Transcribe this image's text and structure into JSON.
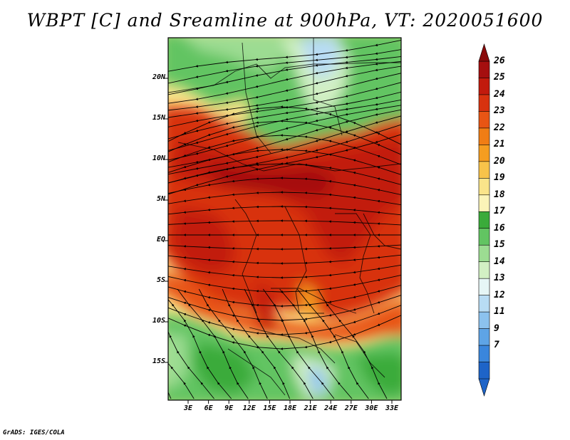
{
  "title": "WBPT [C] and Sreamline at 900hPa, VT: 2020051600",
  "credit": "GrADS: IGES/COLA",
  "map": {
    "lat_ticks": [
      "20N",
      "15N",
      "10N",
      "5N",
      "EQ",
      "5S",
      "10S",
      "15S"
    ],
    "lon_ticks": [
      "3E",
      "6E",
      "9E",
      "12E",
      "15E",
      "18E",
      "21E",
      "24E",
      "27E",
      "30E",
      "33E"
    ]
  },
  "colorbar": {
    "labels": [
      "26",
      "25",
      "24",
      "23",
      "22",
      "21",
      "20",
      "19",
      "18",
      "17",
      "16",
      "15",
      "14",
      "13",
      "12",
      "11",
      "9",
      "7"
    ],
    "colors": [
      "#a50f0f",
      "#c21a0d",
      "#d8320f",
      "#e85514",
      "#f07d15",
      "#f59d20",
      "#f8c34a",
      "#fae48a",
      "#fbf4b8",
      "#3aab3a",
      "#62c462",
      "#9cdc92",
      "#d2f0c4",
      "#e6f6f6",
      "#b8dcf4",
      "#8cc2ee",
      "#5ea4e6",
      "#3a86dc",
      "#1e64c8"
    ],
    "upper_overflow_color": "#8a0a0a",
    "lower_overflow_color": "#1e64c8"
  }
}
